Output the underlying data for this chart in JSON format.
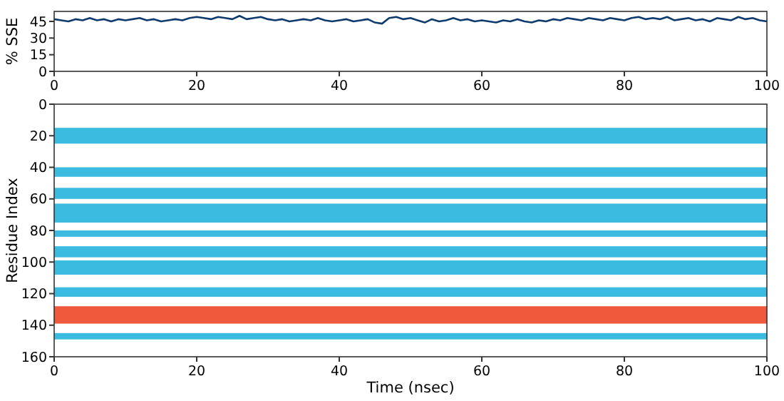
{
  "chart_data": [
    {
      "type": "line",
      "ylabel": "% SSE",
      "xlim": [
        0,
        100
      ],
      "xticks": [
        0,
        20,
        40,
        60,
        80,
        100
      ],
      "ylim": [
        0,
        54
      ],
      "yticks": [
        0,
        15,
        30,
        45
      ],
      "x": [
        0,
        1,
        2,
        3,
        4,
        5,
        6,
        7,
        8,
        9,
        10,
        11,
        12,
        13,
        14,
        15,
        16,
        17,
        18,
        19,
        20,
        21,
        22,
        23,
        24,
        25,
        26,
        27,
        28,
        29,
        30,
        31,
        32,
        33,
        34,
        35,
        36,
        37,
        38,
        39,
        40,
        41,
        42,
        43,
        44,
        45,
        46,
        47,
        48,
        49,
        50,
        51,
        52,
        53,
        54,
        55,
        56,
        57,
        58,
        59,
        60,
        61,
        62,
        63,
        64,
        65,
        66,
        67,
        68,
        69,
        70,
        71,
        72,
        73,
        74,
        75,
        76,
        77,
        78,
        79,
        80,
        81,
        82,
        83,
        84,
        85,
        86,
        87,
        88,
        89,
        90,
        91,
        92,
        93,
        94,
        95,
        96,
        97,
        98,
        99,
        100
      ],
      "series": [
        {
          "color": "#0d3b6e",
          "values": [
            47,
            46,
            45,
            47,
            46,
            48,
            46,
            47,
            45,
            47,
            46,
            47,
            48,
            46,
            47,
            45,
            46,
            47,
            46,
            48,
            49,
            48,
            47,
            49,
            48,
            47,
            50,
            47,
            48,
            49,
            47,
            46,
            47,
            45,
            46,
            47,
            46,
            48,
            46,
            45,
            46,
            47,
            45,
            46,
            47,
            44,
            43,
            48,
            49,
            47,
            48,
            46,
            44,
            47,
            45,
            46,
            48,
            46,
            47,
            45,
            46,
            45,
            44,
            46,
            45,
            47,
            45,
            44,
            46,
            45,
            47,
            46,
            48,
            47,
            46,
            48,
            47,
            46,
            48,
            47,
            46,
            48,
            49,
            47,
            48,
            47,
            49,
            46,
            47,
            48,
            46,
            47,
            45,
            48,
            47,
            46,
            49,
            47,
            48,
            46,
            45
          ]
        }
      ]
    },
    {
      "type": "line",
      "xlabel": "Time (nsec)",
      "ylabel": "Residue Index",
      "xlim": [
        0,
        100
      ],
      "xticks": [
        0,
        20,
        40,
        60,
        80,
        100
      ],
      "ylim": [
        160,
        0
      ],
      "yticks": [
        0,
        20,
        40,
        60,
        80,
        100,
        120,
        140,
        160
      ],
      "bands": [
        {
          "axis": "y",
          "from": 15,
          "to": 25,
          "color": "#3bbbdf"
        },
        {
          "axis": "y",
          "from": 40,
          "to": 46,
          "color": "#3bbbdf"
        },
        {
          "axis": "y",
          "from": 53,
          "to": 60,
          "color": "#3bbbdf"
        },
        {
          "axis": "y",
          "from": 63,
          "to": 75,
          "color": "#3bbbdf"
        },
        {
          "axis": "y",
          "from": 80,
          "to": 84,
          "color": "#3bbbdf"
        },
        {
          "axis": "y",
          "from": 90,
          "to": 97,
          "color": "#3bbbdf"
        },
        {
          "axis": "y",
          "from": 99,
          "to": 108,
          "color": "#3bbbdf"
        },
        {
          "axis": "y",
          "from": 116,
          "to": 122,
          "color": "#3bbbdf"
        },
        {
          "axis": "y",
          "from": 128,
          "to": 139,
          "color": "#ef5a3c"
        },
        {
          "axis": "y",
          "from": 145,
          "to": 149,
          "color": "#3bbbdf"
        }
      ]
    }
  ]
}
